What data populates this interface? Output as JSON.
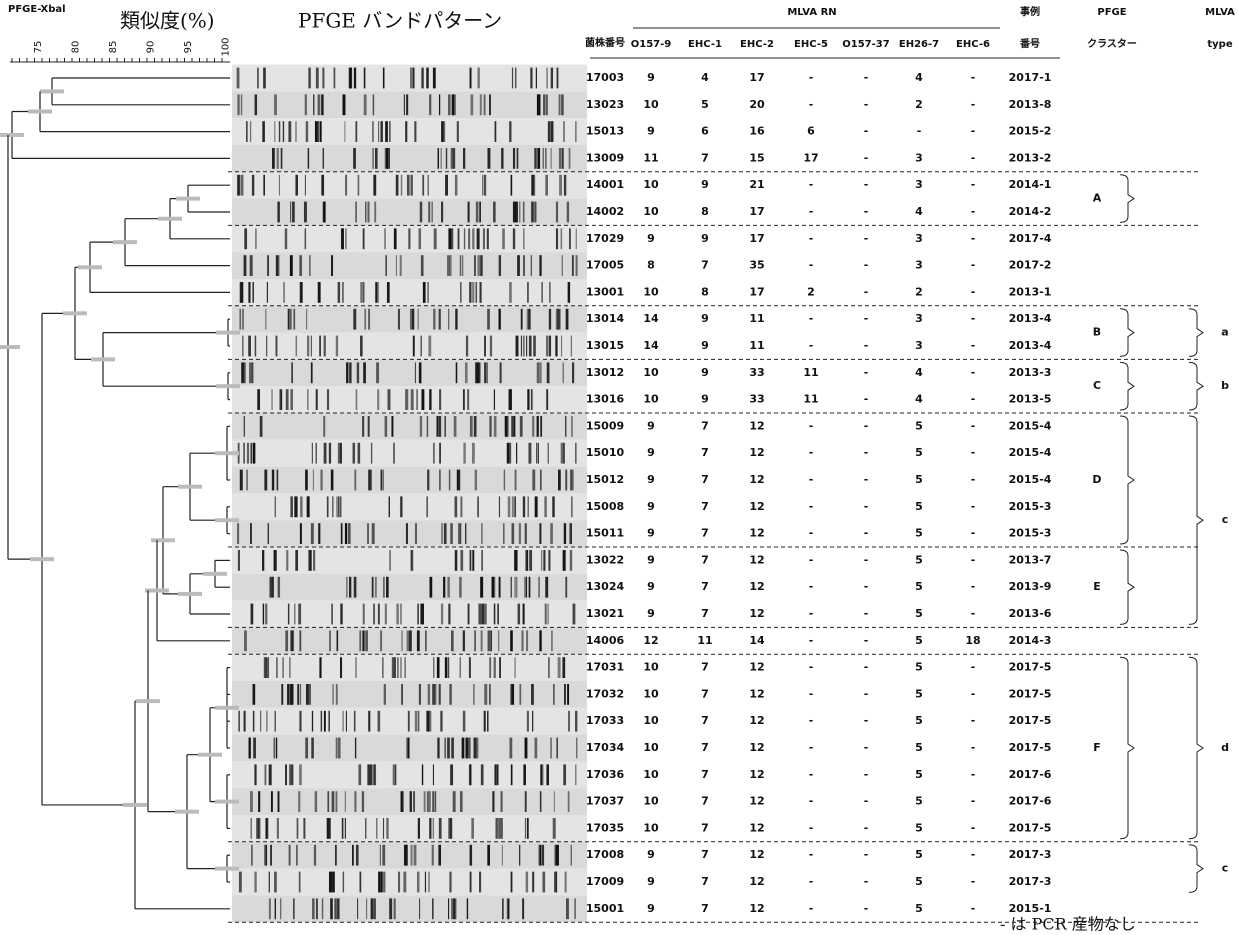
{
  "header": {
    "method": "PFGE-Xbal",
    "similarity": "類似度(%)",
    "band_pattern": "PFGE バンドパターン",
    "strain": "菌株番号",
    "mlva_rn": "MLVA RN",
    "case_top": "事例",
    "case_bottom": "番号",
    "pfge_top": "PFGE",
    "pfge_bottom": "クラスター",
    "mlva_top": "MLVA",
    "mlva_bottom": "type"
  },
  "scale": [
    "75",
    "80",
    "85",
    "90",
    "95",
    "100"
  ],
  "columns": [
    "O157-9",
    "EHC-1",
    "EHC-2",
    "EHC-5",
    "O157-37",
    "EH26-7",
    "EHC-6"
  ],
  "table": {
    "rows": [
      [
        "17003",
        "9",
        "4",
        "17",
        "-",
        "-",
        "4",
        "-",
        "2017-1"
      ],
      [
        "13023",
        "10",
        "5",
        "20",
        "-",
        "-",
        "2",
        "-",
        "2013-8"
      ],
      [
        "15013",
        "9",
        "6",
        "16",
        "6",
        "-",
        "-",
        "-",
        "2015-2"
      ],
      [
        "13009",
        "11",
        "7",
        "15",
        "17",
        "-",
        "3",
        "-",
        "2013-2"
      ],
      [
        "14001",
        "10",
        "9",
        "21",
        "-",
        "-",
        "3",
        "-",
        "2014-1"
      ],
      [
        "14002",
        "10",
        "8",
        "17",
        "-",
        "-",
        "4",
        "-",
        "2014-2"
      ],
      [
        "17029",
        "9",
        "9",
        "17",
        "-",
        "-",
        "3",
        "-",
        "2017-4"
      ],
      [
        "17005",
        "8",
        "7",
        "35",
        "-",
        "-",
        "3",
        "-",
        "2017-2"
      ],
      [
        "13001",
        "10",
        "8",
        "17",
        "2",
        "-",
        "2",
        "-",
        "2013-1"
      ],
      [
        "13014",
        "14",
        "9",
        "11",
        "-",
        "-",
        "3",
        "-",
        "2013-4"
      ],
      [
        "13015",
        "14",
        "9",
        "11",
        "-",
        "-",
        "3",
        "-",
        "2013-4"
      ],
      [
        "13012",
        "10",
        "9",
        "33",
        "11",
        "-",
        "4",
        "-",
        "2013-3"
      ],
      [
        "13016",
        "10",
        "9",
        "33",
        "11",
        "-",
        "4",
        "-",
        "2013-5"
      ],
      [
        "15009",
        "9",
        "7",
        "12",
        "-",
        "-",
        "5",
        "-",
        "2015-4"
      ],
      [
        "15010",
        "9",
        "7",
        "12",
        "-",
        "-",
        "5",
        "-",
        "2015-4"
      ],
      [
        "15012",
        "9",
        "7",
        "12",
        "-",
        "-",
        "5",
        "-",
        "2015-4"
      ],
      [
        "15008",
        "9",
        "7",
        "12",
        "-",
        "-",
        "5",
        "-",
        "2015-3"
      ],
      [
        "15011",
        "9",
        "7",
        "12",
        "-",
        "-",
        "5",
        "-",
        "2015-3"
      ],
      [
        "13022",
        "9",
        "7",
        "12",
        "-",
        "-",
        "5",
        "-",
        "2013-7"
      ],
      [
        "13024",
        "9",
        "7",
        "12",
        "-",
        "-",
        "5",
        "-",
        "2013-9"
      ],
      [
        "13021",
        "9",
        "7",
        "12",
        "-",
        "-",
        "5",
        "-",
        "2013-6"
      ],
      [
        "14006",
        "12",
        "11",
        "14",
        "-",
        "-",
        "5",
        "18",
        "2014-3"
      ],
      [
        "17031",
        "10",
        "7",
        "12",
        "-",
        "-",
        "5",
        "-",
        "2017-5"
      ],
      [
        "17032",
        "10",
        "7",
        "12",
        "-",
        "-",
        "5",
        "-",
        "2017-5"
      ],
      [
        "17033",
        "10",
        "7",
        "12",
        "-",
        "-",
        "5",
        "-",
        "2017-5"
      ],
      [
        "17034",
        "10",
        "7",
        "12",
        "-",
        "-",
        "5",
        "-",
        "2017-5"
      ],
      [
        "17036",
        "10",
        "7",
        "12",
        "-",
        "-",
        "5",
        "-",
        "2017-6"
      ],
      [
        "17037",
        "10",
        "7",
        "12",
        "-",
        "-",
        "5",
        "-",
        "2017-6"
      ],
      [
        "17035",
        "10",
        "7",
        "12",
        "-",
        "-",
        "5",
        "-",
        "2017-5"
      ],
      [
        "17008",
        "9",
        "7",
        "12",
        "-",
        "-",
        "5",
        "-",
        "2017-3"
      ],
      [
        "17009",
        "9",
        "7",
        "12",
        "-",
        "-",
        "5",
        "-",
        "2017-3"
      ],
      [
        "15001",
        "9",
        "7",
        "12",
        "-",
        "-",
        "5",
        "-",
        "2015-1"
      ]
    ]
  },
  "pfge_clusters": [
    {
      "label": "A",
      "rows": [
        4,
        5
      ]
    },
    {
      "label": "B",
      "rows": [
        9,
        10
      ]
    },
    {
      "label": "C",
      "rows": [
        11,
        12
      ]
    },
    {
      "label": "D",
      "rows": [
        13,
        17
      ]
    },
    {
      "label": "E",
      "rows": [
        18,
        20
      ]
    },
    {
      "label": "F",
      "rows": [
        22,
        28
      ]
    }
  ],
  "mlva_types": [
    {
      "label": "a",
      "rows": [
        9,
        10
      ]
    },
    {
      "label": "b",
      "rows": [
        11,
        12
      ]
    },
    {
      "label": "c",
      "rows": [
        13,
        20
      ]
    },
    {
      "label": "d",
      "rows": [
        22,
        28
      ]
    },
    {
      "label": "c",
      "rows": [
        29,
        30
      ]
    }
  ],
  "footnote": "- は PCR 産物なし"
}
